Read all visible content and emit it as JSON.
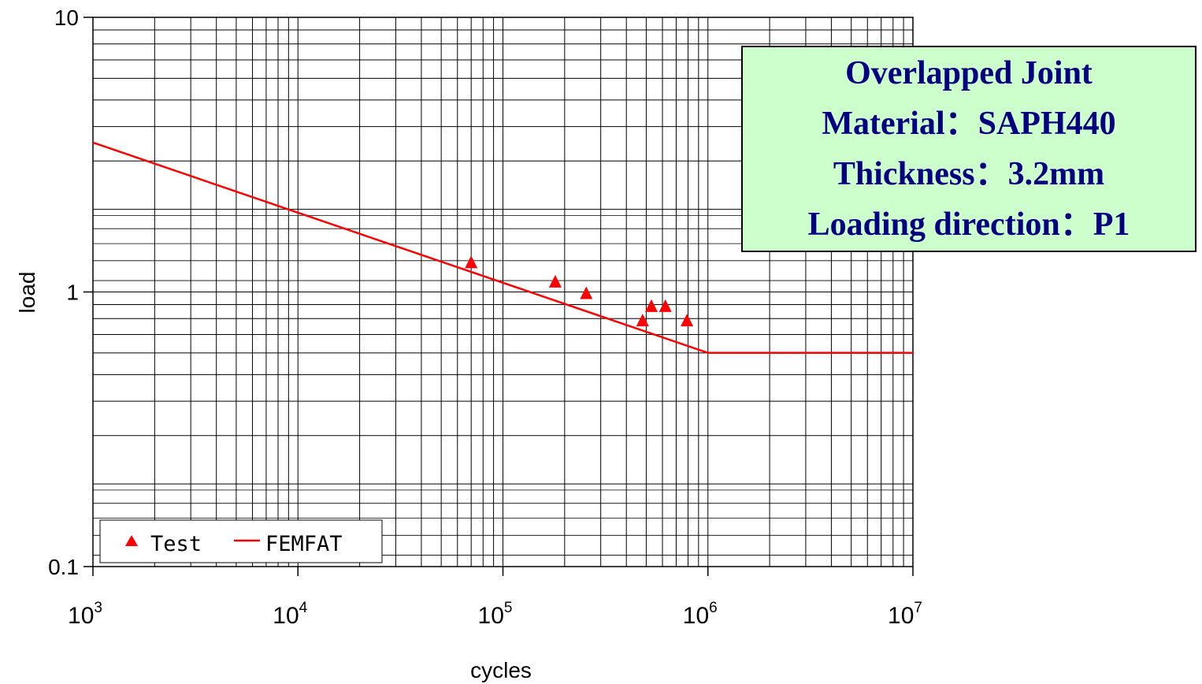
{
  "chart_data": {
    "type": "scatter",
    "xlabel": "cycles",
    "ylabel": "load",
    "x_scale": "log",
    "y_scale": "log",
    "xlim": [
      1000,
      10000000
    ],
    "ylim": [
      0.1,
      10
    ],
    "grid": "major and minor",
    "legend_position": "bottom-left",
    "x_tick_labels": [
      {
        "base": "10",
        "exp": "3"
      },
      {
        "base": "10",
        "exp": "4"
      },
      {
        "base": "10",
        "exp": "5"
      },
      {
        "base": "10",
        "exp": "6"
      },
      {
        "base": "10",
        "exp": "7"
      }
    ],
    "y_tick_labels": [
      "10",
      "1",
      "0.1"
    ],
    "series": [
      {
        "name": "Test",
        "kind": "scatter",
        "marker": "triangle",
        "color": "#ff0000",
        "points": [
          {
            "x": 70000,
            "y": 1.27
          },
          {
            "x": 180000,
            "y": 1.08
          },
          {
            "x": 255000,
            "y": 0.98
          },
          {
            "x": 480000,
            "y": 0.78
          },
          {
            "x": 530000,
            "y": 0.88
          },
          {
            "x": 620000,
            "y": 0.88
          },
          {
            "x": 790000,
            "y": 0.78
          }
        ]
      },
      {
        "name": "FEMFAT",
        "kind": "line",
        "color": "#ff0000",
        "points": [
          {
            "x": 1000,
            "y": 3.5
          },
          {
            "x": 1000000,
            "y": 0.6
          },
          {
            "x": 10000000,
            "y": 0.6
          }
        ]
      }
    ],
    "annotation": {
      "lines": [
        "Overlapped Joint",
        "Material：SAPH440",
        "Thickness：3.2mm",
        "Loading direction：P1"
      ],
      "background": "#ccffcc",
      "text_color": "#000080"
    }
  }
}
